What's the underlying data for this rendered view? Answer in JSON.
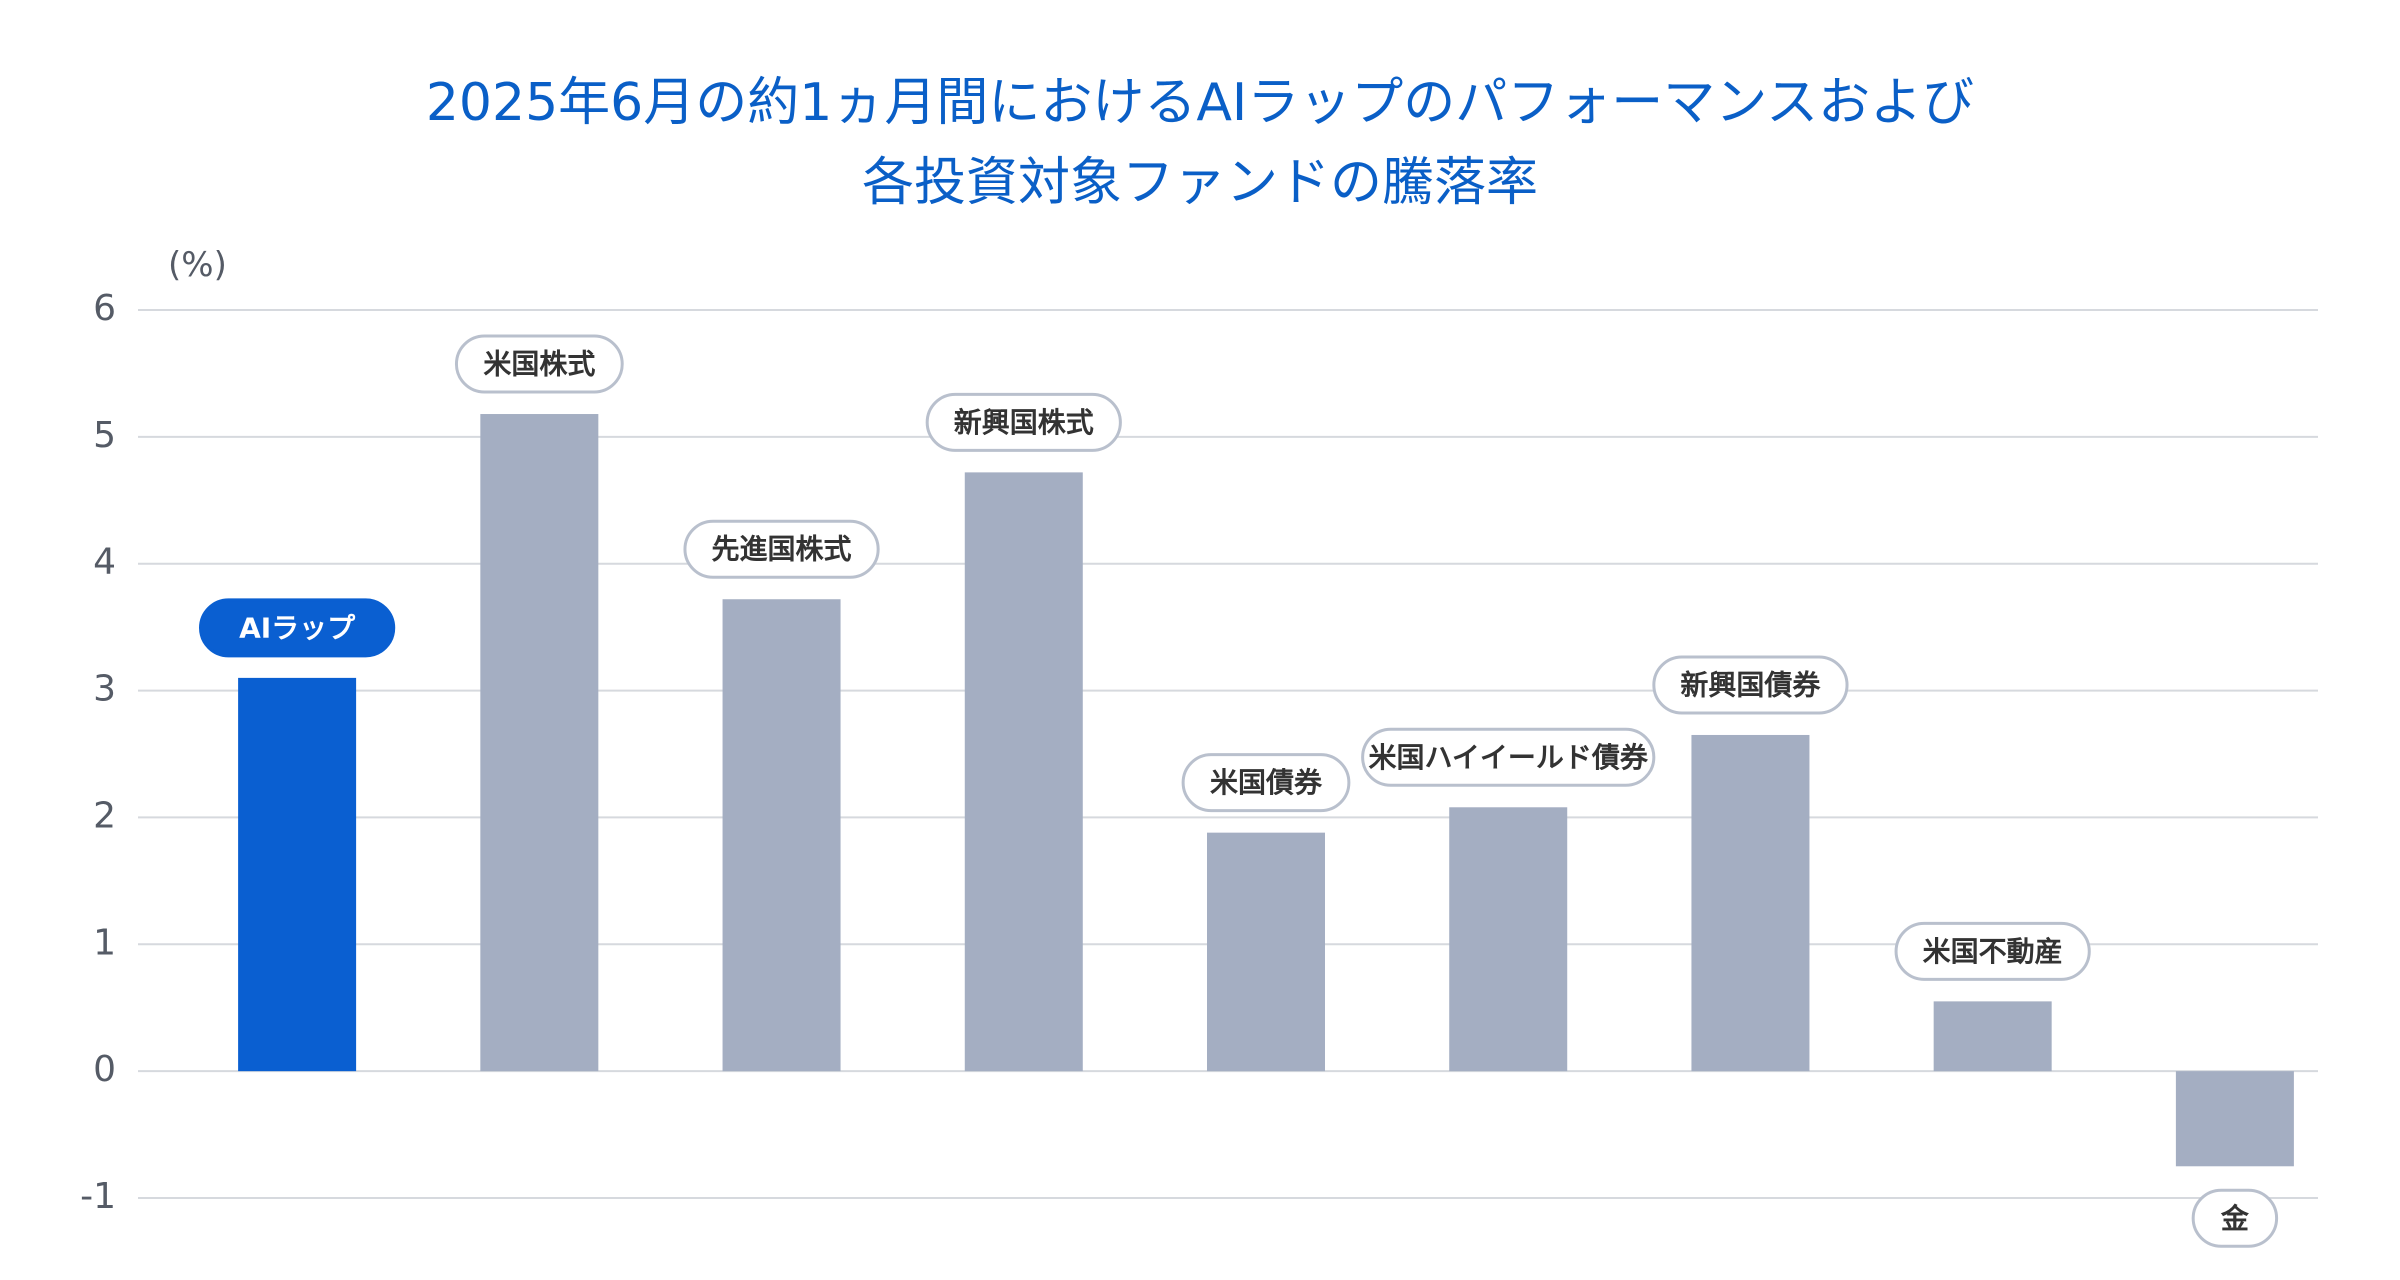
{
  "chart_data": {
    "type": "bar",
    "title": [
      "2025年6月の約1ヵ月間におけるAIラップのパフォーマンスおよび",
      "各投資対象ファンドの騰落率"
    ],
    "ylabel": "(%)",
    "xlabel": "",
    "ylim": [
      -1,
      6
    ],
    "yticks": [
      6,
      5,
      4,
      3,
      2,
      1,
      0,
      -1
    ],
    "grid": true,
    "categories": [
      "AIラップ",
      "米国株式",
      "先進国株式",
      "新興国株式",
      "米国債券",
      "米国ハイイールド債券",
      "新興国債券",
      "米国不動産",
      "金"
    ],
    "values": [
      3.1,
      5.18,
      3.72,
      4.72,
      1.88,
      2.08,
      2.65,
      0.55,
      -0.75
    ],
    "highlight_category": "AIラップ",
    "colors": {
      "highlight": "#0a5fd1",
      "bar": "#a4aec2",
      "title": "#0a5fc7",
      "label_border": "#b9c0cd",
      "label_text": "#333333"
    }
  }
}
